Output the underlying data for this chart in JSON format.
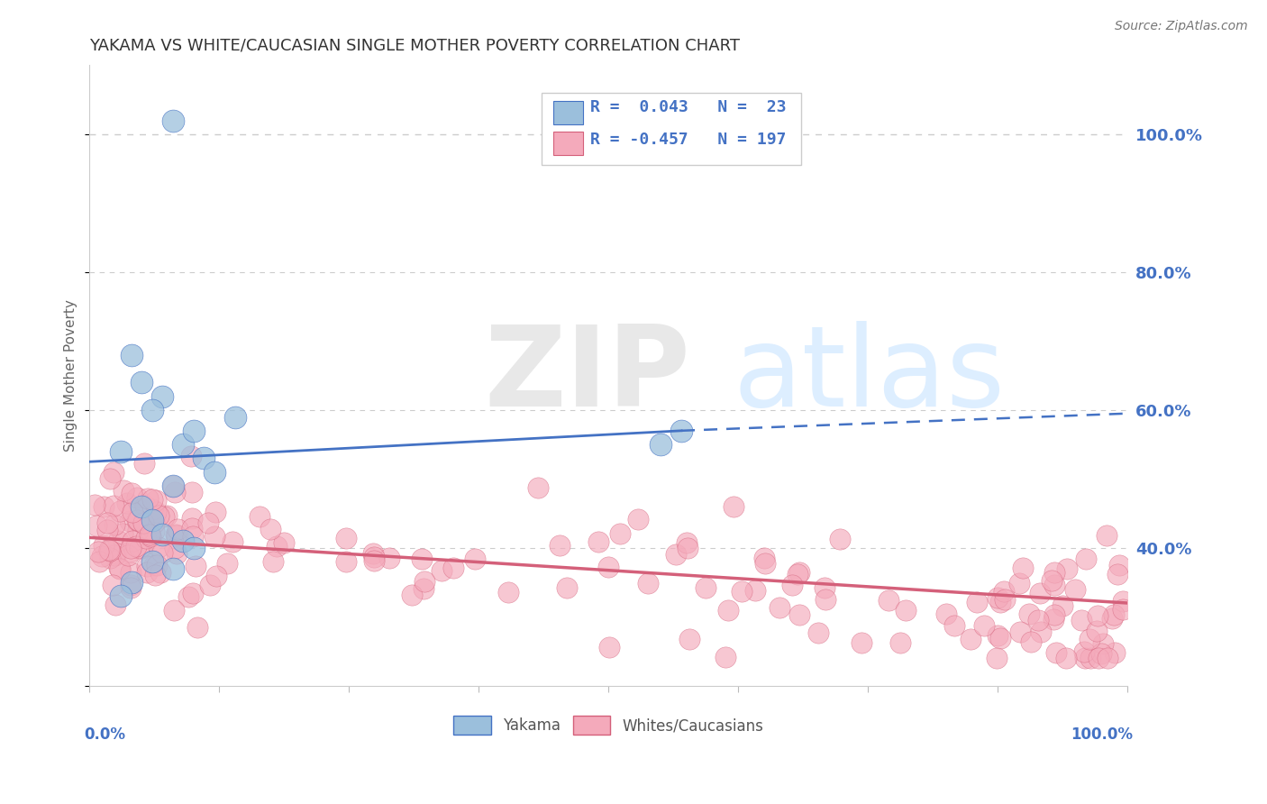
{
  "title": "YAKAMA VS WHITE/CAUCASIAN SINGLE MOTHER POVERTY CORRELATION CHART",
  "source": "Source: ZipAtlas.com",
  "ylabel": "Single Mother Poverty",
  "y_ticks_right": [
    0.4,
    0.6,
    0.8,
    1.0
  ],
  "y_tick_labels_right": [
    "40.0%",
    "60.0%",
    "80.0%",
    "100.0%"
  ],
  "xlim": [
    0.0,
    1.0
  ],
  "ylim": [
    0.2,
    1.1
  ],
  "yakama_R": 0.043,
  "yakama_N": 23,
  "white_R": -0.457,
  "white_N": 197,
  "legend_labels": [
    "Yakama",
    "Whites/Caucasians"
  ],
  "yakama_color": "#9BBFDC",
  "white_color": "#F4AABB",
  "yakama_line_color": "#4472C4",
  "white_line_color": "#D4607A",
  "title_color": "#333333",
  "source_color": "#777777",
  "axis_label_color": "#4472C4",
  "dashed_line_color": "#CCCCCC",
  "background_color": "#FFFFFF",
  "watermark_color": "#DDDDDD",
  "seed": 42,
  "yakama_points_x": [
    0.08,
    0.03,
    0.04,
    0.05,
    0.07,
    0.06,
    0.09,
    0.1,
    0.11,
    0.12,
    0.14,
    0.08,
    0.05,
    0.06,
    0.07,
    0.09,
    0.1,
    0.06,
    0.08,
    0.04,
    0.03,
    0.57,
    0.55
  ],
  "yakama_points_y": [
    1.02,
    0.54,
    0.68,
    0.64,
    0.62,
    0.6,
    0.55,
    0.57,
    0.53,
    0.51,
    0.59,
    0.49,
    0.46,
    0.44,
    0.42,
    0.41,
    0.4,
    0.38,
    0.37,
    0.35,
    0.33,
    0.57,
    0.55
  ],
  "blue_line_x0": 0.0,
  "blue_line_y0": 0.525,
  "blue_line_x1": 0.57,
  "blue_line_y1": 0.57,
  "blue_line_x2": 1.0,
  "blue_line_y2": 0.595,
  "pink_line_x0": 0.0,
  "pink_line_y0": 0.415,
  "pink_line_x1": 1.0,
  "pink_line_y1": 0.32
}
